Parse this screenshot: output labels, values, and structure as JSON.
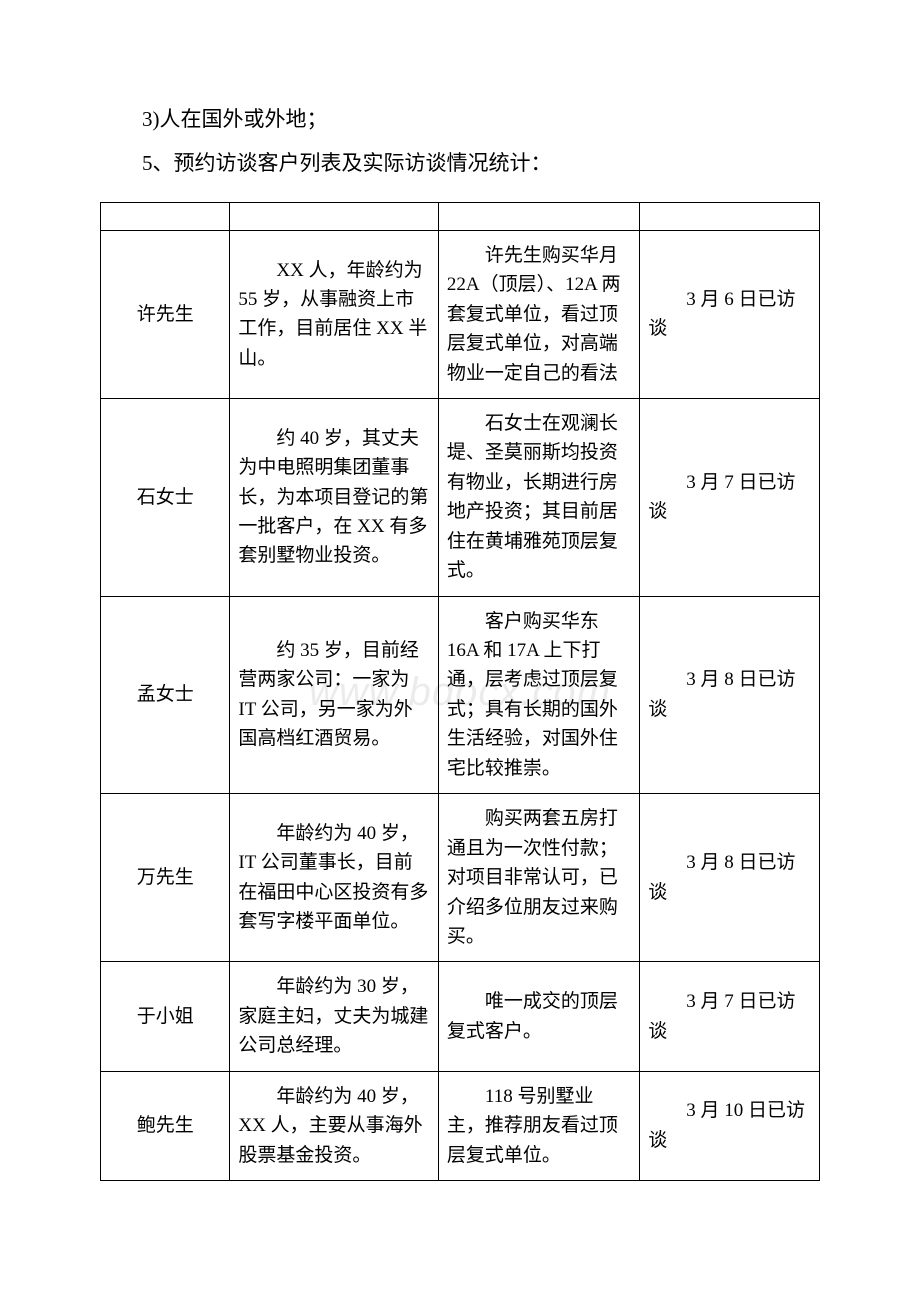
{
  "intro": {
    "line1": "3)人在国外或外地；",
    "line2": "5、预约访谈客户列表及实际访谈情况统计："
  },
  "watermark": "www.bdocx.com",
  "rows": [
    {
      "name": "许先生",
      "profile": "XX 人，年龄约为 55 岁，从事融资上市工作，目前居住 XX 半山。",
      "detail": "许先生购买华月 22A（顶层）、12A 两套复式单位，看过顶层复式单位，对高端物业一定自己的看法",
      "status": "3 月 6 日已访谈"
    },
    {
      "name": "石女士",
      "profile": "约 40 岁，其丈夫为中电照明集团董事长，为本项目登记的第一批客户，在 XX 有多套别墅物业投资。",
      "detail": "石女士在观澜长堤、圣莫丽斯均投资有物业，长期进行房地产投资；其目前居住在黄埔雅苑顶层复式。",
      "status": "3 月 7 日已访谈"
    },
    {
      "name": "孟女士",
      "profile": "约 35 岁，目前经营两家公司：一家为 IT 公司，另一家为外国高档红酒贸易。",
      "detail": "客户购买华东 16A 和 17A 上下打通，层考虑过顶层复式；具有长期的国外生活经验，对国外住宅比较推崇。",
      "status": "3 月 8 日已访谈"
    },
    {
      "name": "万先生",
      "profile": "年龄约为 40 岁，IT 公司董事长，目前在福田中心区投资有多套写字楼平面单位。",
      "detail": "购买两套五房打通且为一次性付款；对项目非常认可，已介绍多位朋友过来购买。",
      "status": "3 月 8 日已访谈"
    },
    {
      "name": "于小姐",
      "profile": "年龄约为 30 岁，家庭主妇，丈夫为城建公司总经理。",
      "detail": "唯一成交的顶层复式客户。",
      "status": "3 月 7 日已访谈"
    },
    {
      "name": "鲍先生",
      "profile": "年龄约为 40 岁，XX 人，主要从事海外股票基金投资。",
      "detail": "118 号别墅业主，推荐朋友看过顶层复式单位。",
      "status": "3 月 10 日已访谈"
    }
  ]
}
